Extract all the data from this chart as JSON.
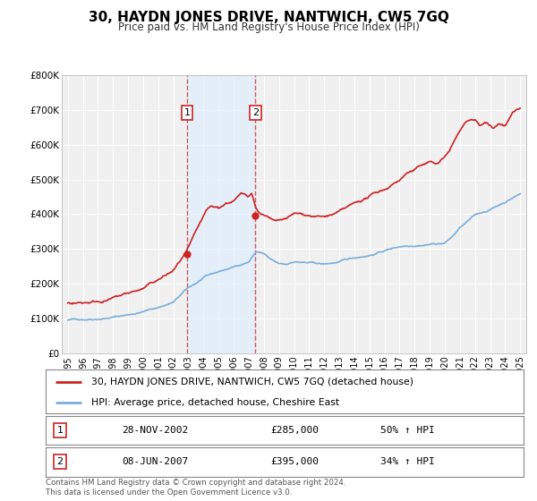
{
  "title": "30, HAYDN JONES DRIVE, NANTWICH, CW5 7GQ",
  "subtitle": "Price paid vs. HM Land Registry's House Price Index (HPI)",
  "background_color": "#ffffff",
  "plot_bg_color": "#f0f0f0",
  "grid_color": "#ffffff",
  "ylim": [
    0,
    800000
  ],
  "yticks": [
    0,
    100000,
    200000,
    300000,
    400000,
    500000,
    600000,
    700000,
    800000
  ],
  "ytick_labels": [
    "£0",
    "£100K",
    "£200K",
    "£300K",
    "£400K",
    "£500K",
    "£600K",
    "£700K",
    "£800K"
  ],
  "xlim_start": 1994.6,
  "xlim_end": 2025.4,
  "xticks": [
    1995,
    1996,
    1997,
    1998,
    1999,
    2000,
    2001,
    2002,
    2003,
    2004,
    2005,
    2006,
    2007,
    2008,
    2009,
    2010,
    2011,
    2012,
    2013,
    2014,
    2015,
    2016,
    2017,
    2018,
    2019,
    2020,
    2021,
    2022,
    2023,
    2024,
    2025
  ],
  "hpi_color": "#7aaddc",
  "price_color": "#cc2222",
  "sale1_x": 2002.91,
  "sale1_y": 285000,
  "sale1_label": "1",
  "sale1_date": "28-NOV-2002",
  "sale1_price": "£285,000",
  "sale1_hpi": "50% ↑ HPI",
  "sale2_x": 2007.44,
  "sale2_y": 395000,
  "sale2_label": "2",
  "sale2_date": "08-JUN-2007",
  "sale2_price": "£395,000",
  "sale2_hpi": "34% ↑ HPI",
  "vline1_x": 2002.91,
  "vline2_x": 2007.44,
  "shade_color": "#ddeeff",
  "shade_alpha": 0.6,
  "legend_line1": "30, HAYDN JONES DRIVE, NANTWICH, CW5 7GQ (detached house)",
  "legend_line2": "HPI: Average price, detached house, Cheshire East",
  "footer": "Contains HM Land Registry data © Crown copyright and database right 2024.\nThis data is licensed under the Open Government Licence v3.0."
}
